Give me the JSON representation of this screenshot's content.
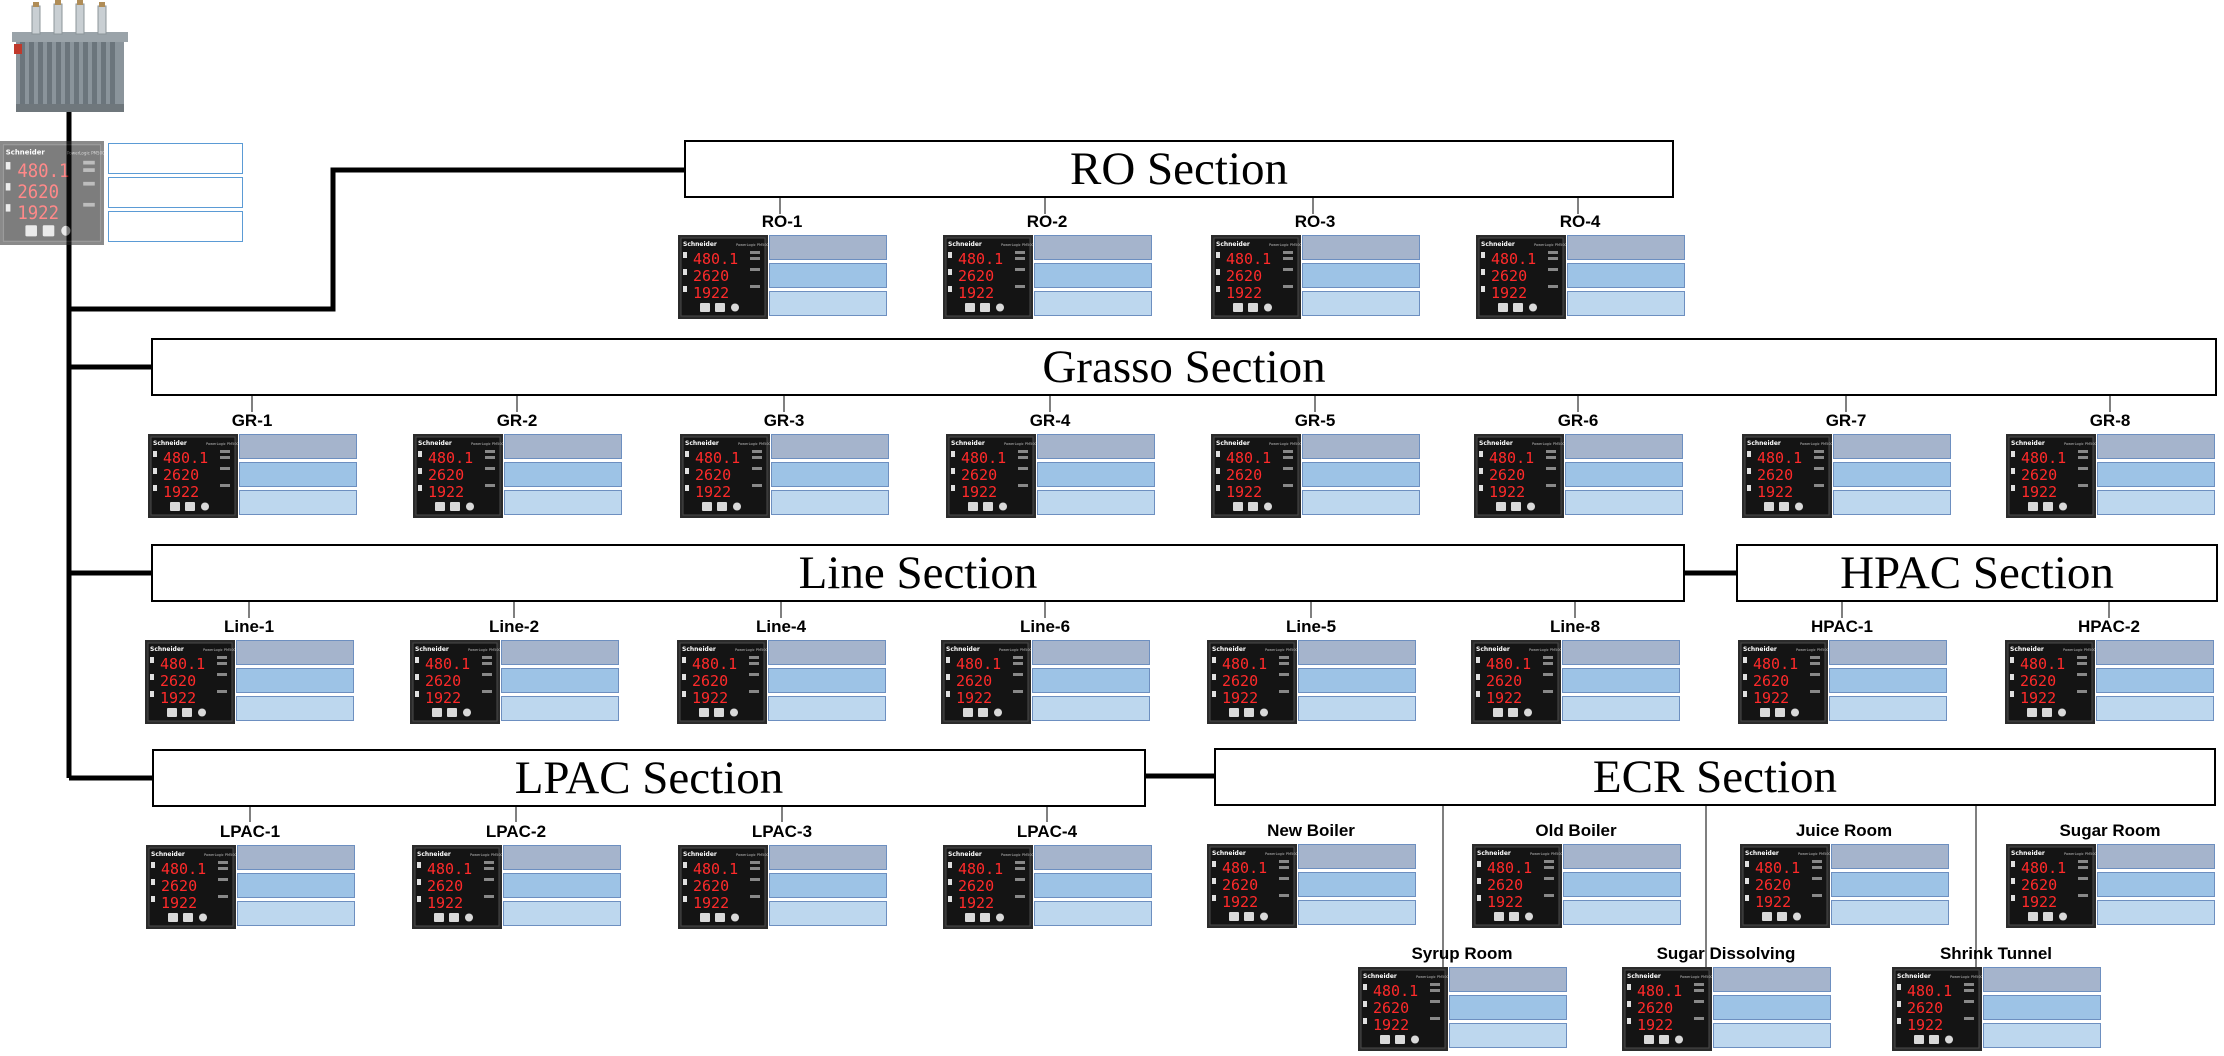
{
  "meter": {
    "brand": "Schneider",
    "model": "PowerLogic PM5000",
    "readings": [
      "480.1",
      "2620",
      "1922"
    ]
  },
  "sections": {
    "ro": "RO Section",
    "grasso": "Grasso Section",
    "line": "Line Section",
    "hpac": "HPAC Section",
    "lpac": "LPAC Section",
    "ecr": "ECR Section"
  },
  "feeders": {
    "ro": [
      "RO-1",
      "RO-2",
      "RO-3",
      "RO-4"
    ],
    "grasso": [
      "GR-1",
      "GR-2",
      "GR-3",
      "GR-4",
      "GR-5",
      "GR-6",
      "GR-7",
      "GR-8"
    ],
    "line": [
      "Line-1",
      "Line-2",
      "Line-4",
      "Line-6",
      "Line-5",
      "Line-8"
    ],
    "hpac": [
      "HPAC-1",
      "HPAC-2"
    ],
    "lpac": [
      "LPAC-1",
      "LPAC-2",
      "LPAC-3",
      "LPAC-4"
    ],
    "ecr_top": [
      "New Boiler",
      "Old Boiler",
      "Juice Room",
      "Sugar Room"
    ],
    "ecr_bottom": [
      "Syrup Room",
      "Sugar Dissolving",
      "Shrink Tunnel"
    ]
  }
}
